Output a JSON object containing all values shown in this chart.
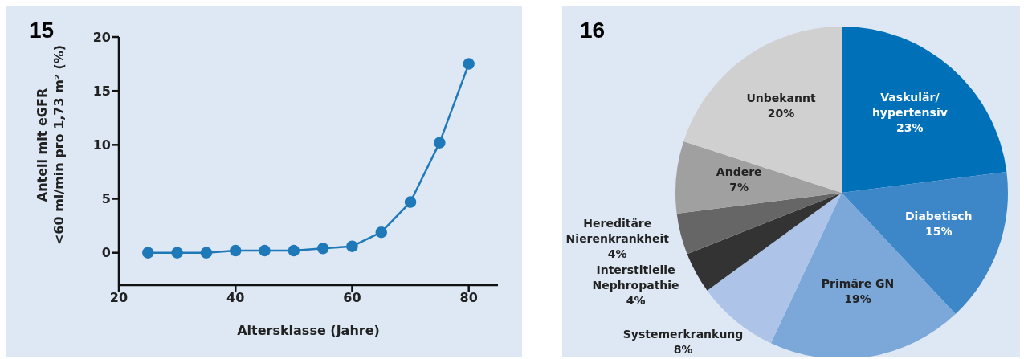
{
  "chart_data": [
    {
      "type": "line",
      "title": "15",
      "xlabel": "Altersklasse (Jahre)",
      "ylabel": "Anteil mit eGFR\n<60 ml/min pro 1,73 m² (%)",
      "x": [
        25,
        30,
        35,
        40,
        45,
        50,
        55,
        60,
        65,
        70,
        75,
        80
      ],
      "series": [
        {
          "color": "#1f78b8",
          "values": [
            0,
            0,
            0,
            0.2,
            0.2,
            0.2,
            0.4,
            0.6,
            1.9,
            4.7,
            10.2,
            17.5
          ]
        }
      ],
      "xlim": [
        20,
        85
      ],
      "xticks": [
        20,
        40,
        60,
        80
      ],
      "ylim": [
        -3,
        20
      ],
      "yticks": [
        0,
        5,
        10,
        15,
        20
      ],
      "marker": "circle",
      "line_style": "solid"
    },
    {
      "type": "pie",
      "title": "16",
      "categories": [
        "Vaskulär/hypertensiv",
        "Diabetisch",
        "Primäre GN",
        "Systemerkrankung",
        "Interstitielle Nephropathie",
        "Hereditäre Nierenkrankheit",
        "Andere",
        "Unbekannt"
      ],
      "values": [
        23,
        15,
        19,
        8,
        4,
        4,
        7,
        20
      ],
      "value_labels": [
        "23%",
        "15%",
        "19%",
        "8%",
        "4%",
        "4%",
        "7%",
        "20%"
      ],
      "colors": [
        "#0070b8",
        "#3d87c8",
        "#7ba7d9",
        "#adc4e8",
        "#333333",
        "#666666",
        "#a0a0a0",
        "#d0d0d0"
      ]
    }
  ]
}
